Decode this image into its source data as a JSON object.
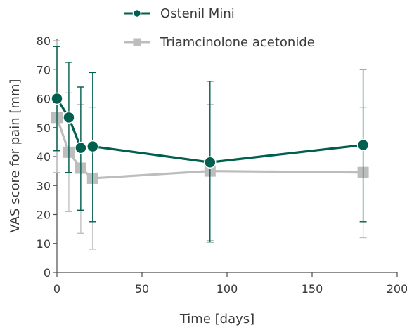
{
  "chart_data": {
    "type": "line",
    "xlabel": "Time [days]",
    "ylabel": "VAS score for pain [mm]",
    "xlim": [
      0,
      200
    ],
    "ylim": [
      0,
      80
    ],
    "xticks": [
      0,
      50,
      100,
      150,
      200
    ],
    "yticks": [
      0,
      10,
      20,
      30,
      40,
      50,
      60,
      70,
      80
    ],
    "grid": false,
    "legend_position": "top-center",
    "series": [
      {
        "name": "Ostenil Mini",
        "color": "#005f4e",
        "marker": "circle",
        "x": [
          0,
          7,
          14,
          21,
          90,
          180
        ],
        "y": [
          60,
          53.5,
          43,
          43.5,
          38,
          44
        ],
        "err_low": [
          42,
          34.5,
          21.5,
          17.5,
          10.5,
          17.5
        ],
        "err_high": [
          78,
          72.5,
          64,
          69,
          66,
          70
        ]
      },
      {
        "name": "Triamcinolone acetonide",
        "color": "#bdbdbd",
        "marker": "square",
        "x": [
          0,
          7,
          14,
          21,
          90,
          180
        ],
        "y": [
          53.5,
          41.5,
          36,
          32.5,
          35,
          34.5
        ],
        "err_low": [
          34.5,
          21,
          13.5,
          8,
          11,
          12
        ],
        "err_high": [
          80,
          62,
          58,
          57,
          58,
          57
        ]
      }
    ]
  }
}
